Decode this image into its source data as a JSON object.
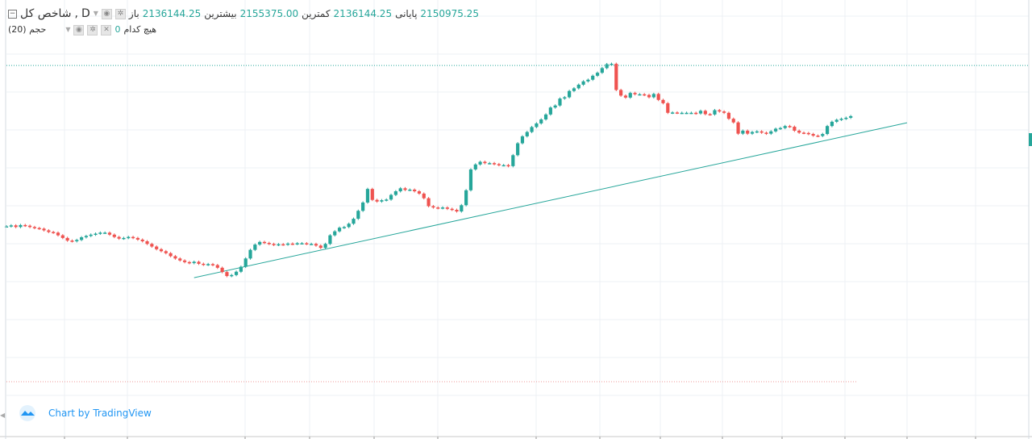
{
  "legend": {
    "symbol": "شاخص کل",
    "interval": "D",
    "open_label": "باز",
    "open_value": "2136144.25",
    "high_label": "بیشترین",
    "high_value": "2155375.00",
    "low_label": "کمترین",
    "low_value": "2136144.25",
    "close_label": "پایانی",
    "close_value": "2150975.25",
    "volume_name": "حجم (20)",
    "volume_value": "0",
    "volume_ma": "هیچ کدام"
  },
  "brand": {
    "text": "Chart by TradingView"
  },
  "colors": {
    "up": "#26a69a",
    "down": "#ef5350",
    "grid": "#eef1f4",
    "trendline": "#26a69a",
    "last_price_line": "#26a69a",
    "brand": "#2196f3"
  },
  "chart_data": {
    "type": "candlestick",
    "title": "شاخص کل",
    "interval": "D",
    "grid": true,
    "y_range": [
      1130000,
      2300000
    ],
    "x_range": [
      0,
      192
    ],
    "points": [
      [
        0,
        1665000
      ],
      [
        1,
        1668000
      ],
      [
        2,
        1663000
      ],
      [
        3,
        1669000
      ],
      [
        4,
        1667000
      ],
      [
        5,
        1663000
      ],
      [
        6,
        1660000
      ],
      [
        7,
        1658000
      ],
      [
        8,
        1653000
      ],
      [
        9,
        1648000
      ],
      [
        10,
        1646000
      ],
      [
        11,
        1638000
      ],
      [
        12,
        1630000
      ],
      [
        13,
        1622000
      ],
      [
        14,
        1620000
      ],
      [
        15,
        1624000
      ],
      [
        16,
        1632000
      ],
      [
        17,
        1636000
      ],
      [
        18,
        1640000
      ],
      [
        19,
        1643000
      ],
      [
        20,
        1646000
      ],
      [
        21,
        1646000
      ],
      [
        22,
        1640000
      ],
      [
        23,
        1633000
      ],
      [
        24,
        1628000
      ],
      [
        25,
        1630000
      ],
      [
        26,
        1633000
      ],
      [
        27,
        1630000
      ],
      [
        28,
        1625000
      ],
      [
        29,
        1620000
      ],
      [
        30,
        1612000
      ],
      [
        31,
        1604000
      ],
      [
        32,
        1596000
      ],
      [
        33,
        1590000
      ],
      [
        34,
        1584000
      ],
      [
        35,
        1575000
      ],
      [
        36,
        1568000
      ],
      [
        37,
        1562000
      ],
      [
        38,
        1557000
      ],
      [
        39,
        1554000
      ],
      [
        40,
        1558000
      ],
      [
        41,
        1552000
      ],
      [
        42,
        1549000
      ],
      [
        43,
        1551000
      ],
      [
        44,
        1548000
      ],
      [
        45,
        1540000
      ],
      [
        46,
        1527000
      ],
      [
        47,
        1515000
      ],
      [
        48,
        1518000
      ],
      [
        49,
        1528000
      ],
      [
        50,
        1543000
      ],
      [
        51,
        1568000
      ],
      [
        52,
        1594000
      ],
      [
        53,
        1610000
      ],
      [
        54,
        1618000
      ],
      [
        55,
        1615000
      ],
      [
        56,
        1612000
      ],
      [
        57,
        1609000
      ],
      [
        58,
        1611000
      ],
      [
        59,
        1610000
      ],
      [
        60,
        1613000
      ],
      [
        61,
        1612000
      ],
      [
        62,
        1614000
      ],
      [
        63,
        1614000
      ],
      [
        64,
        1612000
      ],
      [
        65,
        1612000
      ],
      [
        66,
        1607000
      ],
      [
        67,
        1600000
      ],
      [
        68,
        1612000
      ],
      [
        69,
        1638000
      ],
      [
        70,
        1650000
      ],
      [
        71,
        1661000
      ],
      [
        72,
        1663000
      ],
      [
        73,
        1673000
      ],
      [
        74,
        1688000
      ],
      [
        75,
        1712000
      ],
      [
        76,
        1737000
      ],
      [
        77,
        1778000
      ],
      [
        78,
        1745000
      ],
      [
        79,
        1740000
      ],
      [
        80,
        1744000
      ],
      [
        81,
        1746000
      ],
      [
        82,
        1760000
      ],
      [
        83,
        1771000
      ],
      [
        84,
        1780000
      ],
      [
        85,
        1775000
      ],
      [
        86,
        1776000
      ],
      [
        87,
        1771000
      ],
      [
        88,
        1764000
      ],
      [
        89,
        1750000
      ],
      [
        90,
        1726000
      ],
      [
        91,
        1722000
      ],
      [
        92,
        1720000
      ],
      [
        93,
        1722000
      ],
      [
        94,
        1718000
      ],
      [
        95,
        1715000
      ],
      [
        96,
        1710000
      ],
      [
        97,
        1729000
      ],
      [
        98,
        1774000
      ],
      [
        99,
        1837000
      ],
      [
        100,
        1852000
      ],
      [
        101,
        1860000
      ],
      [
        102,
        1856000
      ],
      [
        103,
        1856000
      ],
      [
        104,
        1853000
      ],
      [
        105,
        1850000
      ],
      [
        106,
        1850000
      ],
      [
        107,
        1847000
      ],
      [
        108,
        1880000
      ],
      [
        109,
        1916000
      ],
      [
        110,
        1937000
      ],
      [
        111,
        1950000
      ],
      [
        112,
        1965000
      ],
      [
        113,
        1976000
      ],
      [
        114,
        1988000
      ],
      [
        115,
        2003000
      ],
      [
        116,
        2024000
      ],
      [
        117,
        2030000
      ],
      [
        118,
        2051000
      ],
      [
        119,
        2055000
      ],
      [
        120,
        2074000
      ],
      [
        121,
        2082000
      ],
      [
        122,
        2093000
      ],
      [
        123,
        2103000
      ],
      [
        124,
        2108000
      ],
      [
        125,
        2120000
      ],
      [
        126,
        2129000
      ],
      [
        127,
        2143000
      ],
      [
        128,
        2155000
      ],
      [
        129,
        2156000
      ],
      [
        130,
        2077000
      ],
      [
        131,
        2060000
      ],
      [
        132,
        2054000
      ],
      [
        133,
        2068000
      ],
      [
        134,
        2064000
      ],
      [
        135,
        2064000
      ],
      [
        136,
        2062000
      ],
      [
        137,
        2055000
      ],
      [
        138,
        2065000
      ],
      [
        139,
        2047000
      ],
      [
        140,
        2037000
      ],
      [
        141,
        2008000
      ],
      [
        142,
        2009000
      ],
      [
        143,
        2008000
      ],
      [
        144,
        2008000
      ],
      [
        145,
        2008000
      ],
      [
        146,
        2008000
      ],
      [
        147,
        2006000
      ],
      [
        148,
        2014000
      ],
      [
        149,
        2004000
      ],
      [
        150,
        2003000
      ],
      [
        151,
        2016000
      ],
      [
        152,
        2012000
      ],
      [
        153,
        2008000
      ],
      [
        154,
        1990000
      ],
      [
        155,
        1979000
      ],
      [
        156,
        1945000
      ],
      [
        157,
        1954000
      ],
      [
        158,
        1945000
      ],
      [
        159,
        1950000
      ],
      [
        160,
        1952000
      ],
      [
        161,
        1948000
      ],
      [
        162,
        1945000
      ],
      [
        163,
        1952000
      ],
      [
        164,
        1960000
      ],
      [
        165,
        1962000
      ],
      [
        166,
        1968000
      ],
      [
        167,
        1966000
      ],
      [
        168,
        1954000
      ],
      [
        169,
        1948000
      ],
      [
        170,
        1947000
      ],
      [
        171,
        1944000
      ],
      [
        172,
        1939000
      ],
      [
        173,
        1938000
      ],
      [
        174,
        1944000
      ],
      [
        175,
        1968000
      ],
      [
        176,
        1981000
      ],
      [
        177,
        1987000
      ],
      [
        178,
        1990000
      ],
      [
        179,
        1993000
      ],
      [
        180,
        1998000
      ]
    ],
    "trendline": {
      "start": [
        40,
        1510000
      ],
      "end": [
        192,
        1978000
      ]
    },
    "last_price": 2150975.25
  }
}
